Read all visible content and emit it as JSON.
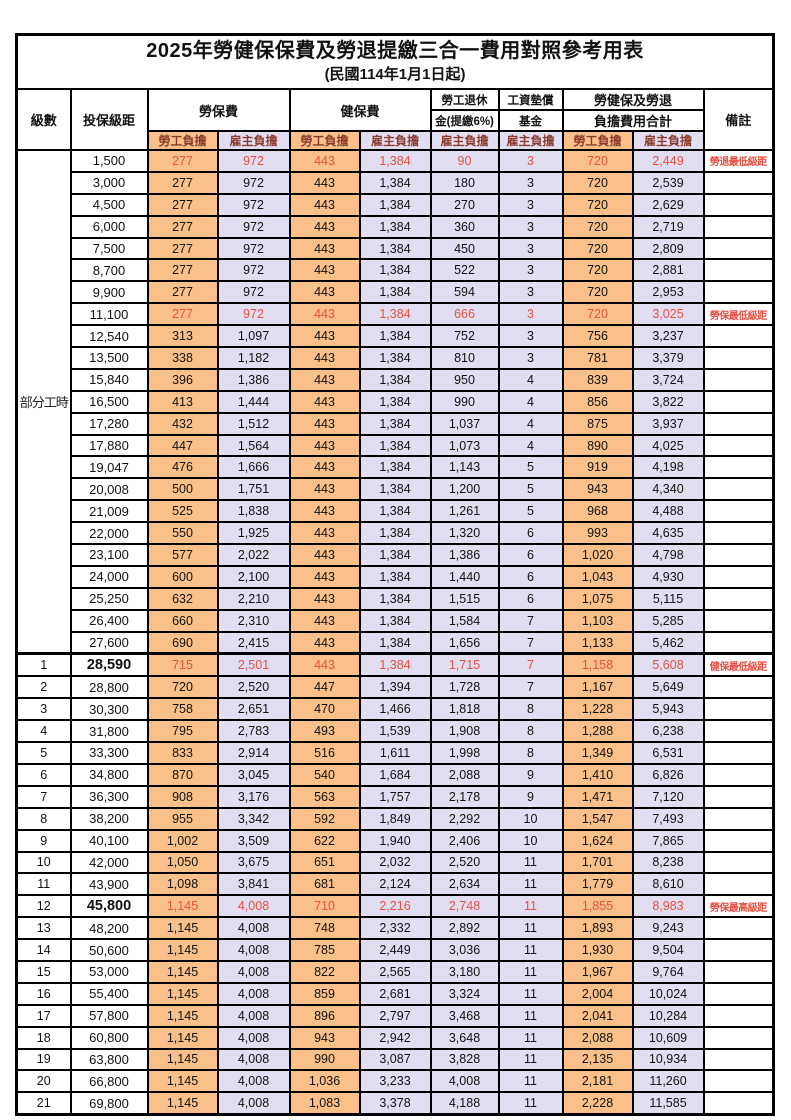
{
  "title": "2025年勞健保保費及勞退提繳三合一費用對照參考用表",
  "subtitle": "(民國114年1月1日起)",
  "colors": {
    "employee_fill": "#F9C189",
    "employer_fill": "#E1DEF2",
    "red_text": "#EA4F41",
    "subheader_text": "#8C3A2C",
    "border": "#000000"
  },
  "header": {
    "level": "級數",
    "bracket": "投保級距",
    "labor_ins": "勞保費",
    "health_ins": "健保費",
    "pension_line1": "勞工退休",
    "pension_line2": "金(提繳6%)",
    "wage_fund_line1": "工資墊償",
    "wage_fund_line2": "基金",
    "total_line1": "勞健保及勞退",
    "total_line2": "負擔費用合計",
    "remark": "備註",
    "employee": "勞工負擔",
    "employer": "雇主負擔"
  },
  "table": {
    "part_time_label": "部分工時",
    "part_time_rowspan": 23,
    "columns": [
      {
        "key": "level",
        "cls": "c-level"
      },
      {
        "key": "bracket",
        "cls": "c-bracket"
      },
      {
        "key": "li_emp",
        "cls": "emp"
      },
      {
        "key": "li_er",
        "cls": "er"
      },
      {
        "key": "hi_emp",
        "cls": "emp"
      },
      {
        "key": "hi_er",
        "cls": "er"
      },
      {
        "key": "pension",
        "cls": "er"
      },
      {
        "key": "fund",
        "cls": "er"
      },
      {
        "key": "tot_emp",
        "cls": "emp"
      },
      {
        "key": "tot_er",
        "cls": "er"
      },
      {
        "key": "remark",
        "cls": "c-remark"
      }
    ],
    "rows": [
      {
        "pt": "start",
        "bracket": "1,500",
        "li_emp": "277",
        "li_er": "972",
        "hi_emp": "443",
        "hi_er": "1,384",
        "pension": "90",
        "fund": "3",
        "tot_emp": "720",
        "tot_er": "2,449",
        "remark": "勞退最低級距",
        "red": true
      },
      {
        "pt": "skip",
        "bracket": "3,000",
        "li_emp": "277",
        "li_er": "972",
        "hi_emp": "443",
        "hi_er": "1,384",
        "pension": "180",
        "fund": "3",
        "tot_emp": "720",
        "tot_er": "2,539",
        "remark": ""
      },
      {
        "pt": "skip",
        "bracket": "4,500",
        "li_emp": "277",
        "li_er": "972",
        "hi_emp": "443",
        "hi_er": "1,384",
        "pension": "270",
        "fund": "3",
        "tot_emp": "720",
        "tot_er": "2,629",
        "remark": ""
      },
      {
        "pt": "skip",
        "bracket": "6,000",
        "li_emp": "277",
        "li_er": "972",
        "hi_emp": "443",
        "hi_er": "1,384",
        "pension": "360",
        "fund": "3",
        "tot_emp": "720",
        "tot_er": "2,719",
        "remark": ""
      },
      {
        "pt": "skip",
        "bracket": "7,500",
        "li_emp": "277",
        "li_er": "972",
        "hi_emp": "443",
        "hi_er": "1,384",
        "pension": "450",
        "fund": "3",
        "tot_emp": "720",
        "tot_er": "2,809",
        "remark": ""
      },
      {
        "pt": "skip",
        "bracket": "8,700",
        "li_emp": "277",
        "li_er": "972",
        "hi_emp": "443",
        "hi_er": "1,384",
        "pension": "522",
        "fund": "3",
        "tot_emp": "720",
        "tot_er": "2,881",
        "remark": ""
      },
      {
        "pt": "skip",
        "bracket": "9,900",
        "li_emp": "277",
        "li_er": "972",
        "hi_emp": "443",
        "hi_er": "1,384",
        "pension": "594",
        "fund": "3",
        "tot_emp": "720",
        "tot_er": "2,953",
        "remark": ""
      },
      {
        "pt": "skip",
        "bracket": "11,100",
        "li_emp": "277",
        "li_er": "972",
        "hi_emp": "443",
        "hi_er": "1,384",
        "pension": "666",
        "fund": "3",
        "tot_emp": "720",
        "tot_er": "3,025",
        "remark": "勞保最低級距",
        "red": true
      },
      {
        "pt": "skip",
        "bracket": "12,540",
        "li_emp": "313",
        "li_er": "1,097",
        "hi_emp": "443",
        "hi_er": "1,384",
        "pension": "752",
        "fund": "3",
        "tot_emp": "756",
        "tot_er": "3,237",
        "remark": ""
      },
      {
        "pt": "skip",
        "bracket": "13,500",
        "li_emp": "338",
        "li_er": "1,182",
        "hi_emp": "443",
        "hi_er": "1,384",
        "pension": "810",
        "fund": "3",
        "tot_emp": "781",
        "tot_er": "3,379",
        "remark": ""
      },
      {
        "pt": "skip",
        "bracket": "15,840",
        "li_emp": "396",
        "li_er": "1,386",
        "hi_emp": "443",
        "hi_er": "1,384",
        "pension": "950",
        "fund": "4",
        "tot_emp": "839",
        "tot_er": "3,724",
        "remark": ""
      },
      {
        "pt": "skip",
        "bracket": "16,500",
        "li_emp": "413",
        "li_er": "1,444",
        "hi_emp": "443",
        "hi_er": "1,384",
        "pension": "990",
        "fund": "4",
        "tot_emp": "856",
        "tot_er": "3,822",
        "remark": ""
      },
      {
        "pt": "skip",
        "bracket": "17,280",
        "li_emp": "432",
        "li_er": "1,512",
        "hi_emp": "443",
        "hi_er": "1,384",
        "pension": "1,037",
        "fund": "4",
        "tot_emp": "875",
        "tot_er": "3,937",
        "remark": ""
      },
      {
        "pt": "skip",
        "bracket": "17,880",
        "li_emp": "447",
        "li_er": "1,564",
        "hi_emp": "443",
        "hi_er": "1,384",
        "pension": "1,073",
        "fund": "4",
        "tot_emp": "890",
        "tot_er": "4,025",
        "remark": ""
      },
      {
        "pt": "skip",
        "bracket": "19,047",
        "li_emp": "476",
        "li_er": "1,666",
        "hi_emp": "443",
        "hi_er": "1,384",
        "pension": "1,143",
        "fund": "5",
        "tot_emp": "919",
        "tot_er": "4,198",
        "remark": ""
      },
      {
        "pt": "skip",
        "bracket": "20,008",
        "li_emp": "500",
        "li_er": "1,751",
        "hi_emp": "443",
        "hi_er": "1,384",
        "pension": "1,200",
        "fund": "5",
        "tot_emp": "943",
        "tot_er": "4,340",
        "remark": ""
      },
      {
        "pt": "skip",
        "bracket": "21,009",
        "li_emp": "525",
        "li_er": "1,838",
        "hi_emp": "443",
        "hi_er": "1,384",
        "pension": "1,261",
        "fund": "5",
        "tot_emp": "968",
        "tot_er": "4,488",
        "remark": ""
      },
      {
        "pt": "skip",
        "bracket": "22,000",
        "li_emp": "550",
        "li_er": "1,925",
        "hi_emp": "443",
        "hi_er": "1,384",
        "pension": "1,320",
        "fund": "6",
        "tot_emp": "993",
        "tot_er": "4,635",
        "remark": ""
      },
      {
        "pt": "skip",
        "bracket": "23,100",
        "li_emp": "577",
        "li_er": "2,022",
        "hi_emp": "443",
        "hi_er": "1,384",
        "pension": "1,386",
        "fund": "6",
        "tot_emp": "1,020",
        "tot_er": "4,798",
        "remark": ""
      },
      {
        "pt": "skip",
        "bracket": "24,000",
        "li_emp": "600",
        "li_er": "2,100",
        "hi_emp": "443",
        "hi_er": "1,384",
        "pension": "1,440",
        "fund": "6",
        "tot_emp": "1,043",
        "tot_er": "4,930",
        "remark": ""
      },
      {
        "pt": "skip",
        "bracket": "25,250",
        "li_emp": "632",
        "li_er": "2,210",
        "hi_emp": "443",
        "hi_er": "1,384",
        "pension": "1,515",
        "fund": "6",
        "tot_emp": "1,075",
        "tot_er": "5,115",
        "remark": ""
      },
      {
        "pt": "skip",
        "bracket": "26,400",
        "li_emp": "660",
        "li_er": "2,310",
        "hi_emp": "443",
        "hi_er": "1,384",
        "pension": "1,584",
        "fund": "7",
        "tot_emp": "1,103",
        "tot_er": "5,285",
        "remark": ""
      },
      {
        "pt": "skip",
        "bracket": "27,600",
        "li_emp": "690",
        "li_er": "2,415",
        "hi_emp": "443",
        "hi_er": "1,384",
        "pension": "1,656",
        "fund": "7",
        "tot_emp": "1,133",
        "tot_er": "5,462",
        "remark": ""
      },
      {
        "level": "1",
        "bracket": "28,590",
        "li_emp": "715",
        "li_er": "2,501",
        "hi_emp": "443",
        "hi_er": "1,384",
        "pension": "1,715",
        "fund": "7",
        "tot_emp": "1,158",
        "tot_er": "5,608",
        "remark": "健保最低級距",
        "red": true,
        "b": true,
        "sep": true
      },
      {
        "level": "2",
        "bracket": "28,800",
        "li_emp": "720",
        "li_er": "2,520",
        "hi_emp": "447",
        "hi_er": "1,394",
        "pension": "1,728",
        "fund": "7",
        "tot_emp": "1,167",
        "tot_er": "5,649",
        "remark": ""
      },
      {
        "level": "3",
        "bracket": "30,300",
        "li_emp": "758",
        "li_er": "2,651",
        "hi_emp": "470",
        "hi_er": "1,466",
        "pension": "1,818",
        "fund": "8",
        "tot_emp": "1,228",
        "tot_er": "5,943",
        "remark": ""
      },
      {
        "level": "4",
        "bracket": "31,800",
        "li_emp": "795",
        "li_er": "2,783",
        "hi_emp": "493",
        "hi_er": "1,539",
        "pension": "1,908",
        "fund": "8",
        "tot_emp": "1,288",
        "tot_er": "6,238",
        "remark": ""
      },
      {
        "level": "5",
        "bracket": "33,300",
        "li_emp": "833",
        "li_er": "2,914",
        "hi_emp": "516",
        "hi_er": "1,611",
        "pension": "1,998",
        "fund": "8",
        "tot_emp": "1,349",
        "tot_er": "6,531",
        "remark": ""
      },
      {
        "level": "6",
        "bracket": "34,800",
        "li_emp": "870",
        "li_er": "3,045",
        "hi_emp": "540",
        "hi_er": "1,684",
        "pension": "2,088",
        "fund": "9",
        "tot_emp": "1,410",
        "tot_er": "6,826",
        "remark": ""
      },
      {
        "level": "7",
        "bracket": "36,300",
        "li_emp": "908",
        "li_er": "3,176",
        "hi_emp": "563",
        "hi_er": "1,757",
        "pension": "2,178",
        "fund": "9",
        "tot_emp": "1,471",
        "tot_er": "7,120",
        "remark": ""
      },
      {
        "level": "8",
        "bracket": "38,200",
        "li_emp": "955",
        "li_er": "3,342",
        "hi_emp": "592",
        "hi_er": "1,849",
        "pension": "2,292",
        "fund": "10",
        "tot_emp": "1,547",
        "tot_er": "7,493",
        "remark": ""
      },
      {
        "level": "9",
        "bracket": "40,100",
        "li_emp": "1,002",
        "li_er": "3,509",
        "hi_emp": "622",
        "hi_er": "1,940",
        "pension": "2,406",
        "fund": "10",
        "tot_emp": "1,624",
        "tot_er": "7,865",
        "remark": ""
      },
      {
        "level": "10",
        "bracket": "42,000",
        "li_emp": "1,050",
        "li_er": "3,675",
        "hi_emp": "651",
        "hi_er": "2,032",
        "pension": "2,520",
        "fund": "11",
        "tot_emp": "1,701",
        "tot_er": "8,238",
        "remark": ""
      },
      {
        "level": "11",
        "bracket": "43,900",
        "li_emp": "1,098",
        "li_er": "3,841",
        "hi_emp": "681",
        "hi_er": "2,124",
        "pension": "2,634",
        "fund": "11",
        "tot_emp": "1,779",
        "tot_er": "8,610",
        "remark": ""
      },
      {
        "level": "12",
        "bracket": "45,800",
        "li_emp": "1,145",
        "li_er": "4,008",
        "hi_emp": "710",
        "hi_er": "2,216",
        "pension": "2,748",
        "fund": "11",
        "tot_emp": "1,855",
        "tot_er": "8,983",
        "remark": "勞保最高級距",
        "red": true,
        "b": true
      },
      {
        "level": "13",
        "bracket": "48,200",
        "li_emp": "1,145",
        "li_er": "4,008",
        "hi_emp": "748",
        "hi_er": "2,332",
        "pension": "2,892",
        "fund": "11",
        "tot_emp": "1,893",
        "tot_er": "9,243",
        "remark": ""
      },
      {
        "level": "14",
        "bracket": "50,600",
        "li_emp": "1,145",
        "li_er": "4,008",
        "hi_emp": "785",
        "hi_er": "2,449",
        "pension": "3,036",
        "fund": "11",
        "tot_emp": "1,930",
        "tot_er": "9,504",
        "remark": ""
      },
      {
        "level": "15",
        "bracket": "53,000",
        "li_emp": "1,145",
        "li_er": "4,008",
        "hi_emp": "822",
        "hi_er": "2,565",
        "pension": "3,180",
        "fund": "11",
        "tot_emp": "1,967",
        "tot_er": "9,764",
        "remark": ""
      },
      {
        "level": "16",
        "bracket": "55,400",
        "li_emp": "1,145",
        "li_er": "4,008",
        "hi_emp": "859",
        "hi_er": "2,681",
        "pension": "3,324",
        "fund": "11",
        "tot_emp": "2,004",
        "tot_er": "10,024",
        "remark": ""
      },
      {
        "level": "17",
        "bracket": "57,800",
        "li_emp": "1,145",
        "li_er": "4,008",
        "hi_emp": "896",
        "hi_er": "2,797",
        "pension": "3,468",
        "fund": "11",
        "tot_emp": "2,041",
        "tot_er": "10,284",
        "remark": ""
      },
      {
        "level": "18",
        "bracket": "60,800",
        "li_emp": "1,145",
        "li_er": "4,008",
        "hi_emp": "943",
        "hi_er": "2,942",
        "pension": "3,648",
        "fund": "11",
        "tot_emp": "2,088",
        "tot_er": "10,609",
        "remark": ""
      },
      {
        "level": "19",
        "bracket": "63,800",
        "li_emp": "1,145",
        "li_er": "4,008",
        "hi_emp": "990",
        "hi_er": "3,087",
        "pension": "3,828",
        "fund": "11",
        "tot_emp": "2,135",
        "tot_er": "10,934",
        "remark": ""
      },
      {
        "level": "20",
        "bracket": "66,800",
        "li_emp": "1,145",
        "li_er": "4,008",
        "hi_emp": "1,036",
        "hi_er": "3,233",
        "pension": "4,008",
        "fund": "11",
        "tot_emp": "2,181",
        "tot_er": "11,260",
        "remark": ""
      },
      {
        "level": "21",
        "bracket": "69,800",
        "li_emp": "1,145",
        "li_er": "4,008",
        "hi_emp": "1,083",
        "hi_er": "3,378",
        "pension": "4,188",
        "fund": "11",
        "tot_emp": "2,228",
        "tot_er": "11,585",
        "remark": ""
      }
    ]
  }
}
